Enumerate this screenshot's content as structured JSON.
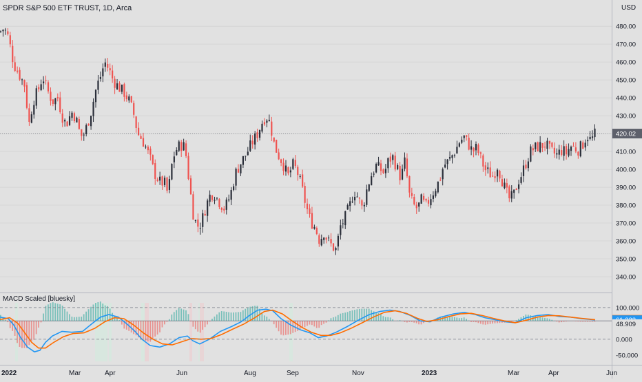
{
  "header": {
    "symbol_title": "SPDR S&P 500 ETF TRUST, 1D, Arca",
    "currency": "USD"
  },
  "colors": {
    "background": "#e1e1e1",
    "up_candle": "#26a69a",
    "down_candle": "#ef5350",
    "candle_body_dark": "#2a2e39",
    "macd_line": "#2196f3",
    "signal_line": "#ff6d00",
    "hist_positive": "#26a69a",
    "hist_negative": "#ef5350"
  },
  "chart_data": [
    {
      "type": "candlestick",
      "title": "SPDR S&P 500 ETF TRUST, 1D, Arca",
      "ylabel": "USD",
      "ylim": [
        335,
        487
      ],
      "y_ticks": [
        "480.00",
        "470.00",
        "460.00",
        "450.00",
        "440.00",
        "430.00",
        "420.00",
        "410.00",
        "400.00",
        "390.00",
        "380.00",
        "370.00",
        "360.00",
        "350.00",
        "340.00"
      ],
      "x_ticks": [
        "2022",
        "Mar",
        "Apr",
        "Jun",
        "Aug",
        "Sep",
        "Nov",
        "2023",
        "Mar",
        "Apr",
        "Jun"
      ],
      "last_price": 420.02,
      "last_price_label": "420.02",
      "path_points": [
        [
          0,
          477
        ],
        [
          6,
          479
        ],
        [
          12,
          474
        ],
        [
          20,
          459
        ],
        [
          28,
          453
        ],
        [
          36,
          447
        ],
        [
          42,
          425
        ],
        [
          48,
          438
        ],
        [
          56,
          445
        ],
        [
          62,
          452
        ],
        [
          68,
          445
        ],
        [
          76,
          438
        ],
        [
          84,
          440
        ],
        [
          90,
          430
        ],
        [
          96,
          425
        ],
        [
          104,
          432
        ],
        [
          110,
          429
        ],
        [
          116,
          420
        ],
        [
          120,
          418
        ],
        [
          126,
          424
        ],
        [
          132,
          432
        ],
        [
          140,
          446
        ],
        [
          146,
          452
        ],
        [
          152,
          460
        ],
        [
          158,
          456
        ],
        [
          164,
          450
        ],
        [
          172,
          446
        ],
        [
          180,
          443
        ],
        [
          188,
          438
        ],
        [
          194,
          431
        ],
        [
          200,
          420
        ],
        [
          206,
          417
        ],
        [
          212,
          412
        ],
        [
          218,
          406
        ],
        [
          224,
          398
        ],
        [
          232,
          393
        ],
        [
          240,
          392
        ],
        [
          244,
          385
        ],
        [
          248,
          400
        ],
        [
          254,
          410
        ],
        [
          260,
          413
        ],
        [
          266,
          414
        ],
        [
          270,
          408
        ],
        [
          274,
          395
        ],
        [
          280,
          376
        ],
        [
          286,
          368
        ],
        [
          292,
          370
        ],
        [
          298,
          378
        ],
        [
          304,
          385
        ],
        [
          310,
          387
        ],
        [
          318,
          382
        ],
        [
          326,
          378
        ],
        [
          334,
          385
        ],
        [
          342,
          398
        ],
        [
          350,
          404
        ],
        [
          358,
          409
        ],
        [
          366,
          415
        ],
        [
          374,
          420
        ],
        [
          380,
          426
        ],
        [
          386,
          430
        ],
        [
          392,
          426
        ],
        [
          398,
          414
        ],
        [
          404,
          408
        ],
        [
          410,
          404
        ],
        [
          418,
          396
        ],
        [
          426,
          403
        ],
        [
          432,
          398
        ],
        [
          438,
          390
        ],
        [
          444,
          380
        ],
        [
          450,
          372
        ],
        [
          458,
          367
        ],
        [
          464,
          360
        ],
        [
          470,
          365
        ],
        [
          476,
          360
        ],
        [
          482,
          357
        ],
        [
          488,
          355
        ],
        [
          494,
          368
        ],
        [
          500,
          372
        ],
        [
          508,
          380
        ],
        [
          514,
          388
        ],
        [
          520,
          384
        ],
        [
          526,
          378
        ],
        [
          532,
          388
        ],
        [
          538,
          396
        ],
        [
          546,
          402
        ],
        [
          552,
          400
        ],
        [
          558,
          398
        ],
        [
          564,
          405
        ],
        [
          570,
          407
        ],
        [
          576,
          401
        ],
        [
          582,
          395
        ],
        [
          588,
          405
        ],
        [
          594,
          386
        ],
        [
          600,
          380
        ],
        [
          606,
          378
        ],
        [
          612,
          383
        ],
        [
          618,
          379
        ],
        [
          624,
          384
        ],
        [
          630,
          388
        ],
        [
          638,
          394
        ],
        [
          644,
          402
        ],
        [
          652,
          405
        ],
        [
          660,
          410
        ],
        [
          668,
          416
        ],
        [
          674,
          418
        ],
        [
          680,
          414
        ],
        [
          686,
          410
        ],
        [
          692,
          412
        ],
        [
          698,
          406
        ],
        [
          704,
          400
        ],
        [
          710,
          398
        ],
        [
          716,
          396
        ],
        [
          722,
          402
        ],
        [
          728,
          395
        ],
        [
          734,
          388
        ],
        [
          740,
          383
        ],
        [
          746,
          386
        ],
        [
          752,
          393
        ],
        [
          758,
          398
        ],
        [
          764,
          404
        ],
        [
          770,
          410
        ],
        [
          776,
          412
        ],
        [
          784,
          413
        ],
        [
          792,
          414
        ],
        [
          800,
          410
        ],
        [
          808,
          408
        ],
        [
          816,
          411
        ],
        [
          822,
          409
        ],
        [
          828,
          413
        ],
        [
          834,
          412
        ],
        [
          840,
          411
        ],
        [
          846,
          414
        ],
        [
          852,
          419
        ],
        [
          858,
          416
        ],
        [
          864,
          420
        ]
      ]
    },
    {
      "type": "line",
      "title": "MACD Scaled [bluesky]",
      "ylim": [
        -70,
        115
      ],
      "y_ticks": [
        "100.000",
        "0.000",
        "-50.000"
      ],
      "value_labels": [
        {
          "text": "62.438",
          "value": 62.438,
          "color": "#ff6d00"
        },
        {
          "text": "61.333",
          "value": 61.333,
          "color": "#2196f3"
        },
        {
          "text": "48.909",
          "value": 48.909,
          "color": "#e1e1e1"
        }
      ],
      "hist_zero": 58,
      "series": [
        {
          "color": "#2196f3",
          "points": [
            [
              0,
              70
            ],
            [
              12,
              65
            ],
            [
              20,
              45
            ],
            [
              30,
              5
            ],
            [
              40,
              -25
            ],
            [
              50,
              -40
            ],
            [
              58,
              -35
            ],
            [
              66,
              -10
            ],
            [
              76,
              10
            ],
            [
              90,
              25
            ],
            [
              104,
              22
            ],
            [
              120,
              25
            ],
            [
              134,
              50
            ],
            [
              146,
              70
            ],
            [
              158,
              78
            ],
            [
              172,
              70
            ],
            [
              186,
              45
            ],
            [
              196,
              25
            ],
            [
              206,
              0
            ],
            [
              218,
              -20
            ],
            [
              232,
              -25
            ],
            [
              246,
              -15
            ],
            [
              260,
              5
            ],
            [
              272,
              10
            ],
            [
              280,
              -5
            ],
            [
              290,
              -15
            ],
            [
              304,
              0
            ],
            [
              320,
              25
            ],
            [
              336,
              40
            ],
            [
              350,
              55
            ],
            [
              362,
              75
            ],
            [
              374,
              92
            ],
            [
              386,
              95
            ],
            [
              396,
              90
            ],
            [
              408,
              65
            ],
            [
              422,
              45
            ],
            [
              436,
              30
            ],
            [
              450,
              20
            ],
            [
              462,
              5
            ],
            [
              474,
              10
            ],
            [
              488,
              22
            ],
            [
              504,
              40
            ],
            [
              520,
              60
            ],
            [
              536,
              78
            ],
            [
              552,
              88
            ],
            [
              566,
              92
            ],
            [
              580,
              88
            ],
            [
              596,
              75
            ],
            [
              610,
              58
            ],
            [
              624,
              55
            ],
            [
              640,
              70
            ],
            [
              658,
              80
            ],
            [
              674,
              85
            ],
            [
              690,
              78
            ],
            [
              704,
              68
            ],
            [
              718,
              62
            ],
            [
              734,
              55
            ],
            [
              748,
              52
            ],
            [
              764,
              68
            ],
            [
              780,
              75
            ],
            [
              796,
              78
            ],
            [
              812,
              72
            ],
            [
              828,
              70
            ],
            [
              844,
              65
            ],
            [
              864,
              61
            ]
          ]
        },
        {
          "color": "#ff6d00",
          "points": [
            [
              0,
              62
            ],
            [
              14,
              68
            ],
            [
              26,
              50
            ],
            [
              36,
              20
            ],
            [
              46,
              -10
            ],
            [
              56,
              -28
            ],
            [
              66,
              -28
            ],
            [
              78,
              -10
            ],
            [
              92,
              8
            ],
            [
              106,
              18
            ],
            [
              122,
              20
            ],
            [
              138,
              35
            ],
            [
              152,
              55
            ],
            [
              166,
              68
            ],
            [
              180,
              65
            ],
            [
              194,
              45
            ],
            [
              208,
              20
            ],
            [
              222,
              0
            ],
            [
              236,
              -15
            ],
            [
              250,
              -18
            ],
            [
              264,
              -8
            ],
            [
              278,
              2
            ],
            [
              292,
              0
            ],
            [
              306,
              2
            ],
            [
              322,
              15
            ],
            [
              338,
              32
            ],
            [
              354,
              48
            ],
            [
              370,
              68
            ],
            [
              384,
              88
            ],
            [
              396,
              92
            ],
            [
              410,
              80
            ],
            [
              424,
              58
            ],
            [
              438,
              38
            ],
            [
              452,
              22
            ],
            [
              466,
              12
            ],
            [
              480,
              12
            ],
            [
              494,
              20
            ],
            [
              510,
              35
            ],
            [
              526,
              52
            ],
            [
              542,
              70
            ],
            [
              558,
              85
            ],
            [
              574,
              90
            ],
            [
              590,
              82
            ],
            [
              606,
              66
            ],
            [
              620,
              56
            ],
            [
              636,
              62
            ],
            [
              652,
              72
            ],
            [
              668,
              80
            ],
            [
              684,
              82
            ],
            [
              700,
              75
            ],
            [
              716,
              66
            ],
            [
              732,
              58
            ],
            [
              748,
              52
            ],
            [
              764,
              60
            ],
            [
              780,
              70
            ],
            [
              796,
              75
            ],
            [
              812,
              74
            ],
            [
              828,
              70
            ],
            [
              844,
              66
            ],
            [
              864,
              62
            ]
          ]
        }
      ]
    }
  ]
}
